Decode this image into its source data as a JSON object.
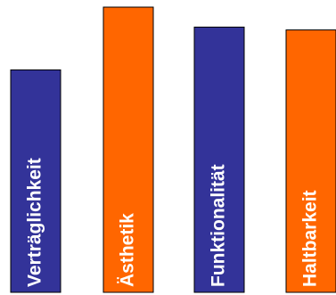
{
  "chart_data": {
    "type": "bar",
    "categories": [
      "Verträglichkeit",
      "Ästhetik",
      "Funktionalität",
      "Haltbarkeit"
    ],
    "values": [
      78,
      100,
      93,
      92
    ],
    "colors": [
      "#333399",
      "#ff6600",
      "#333399",
      "#ff6600"
    ],
    "ylim": [
      0,
      100
    ],
    "grid": false,
    "legend": "none",
    "title": "",
    "xlabel": "",
    "ylabel": ""
  }
}
